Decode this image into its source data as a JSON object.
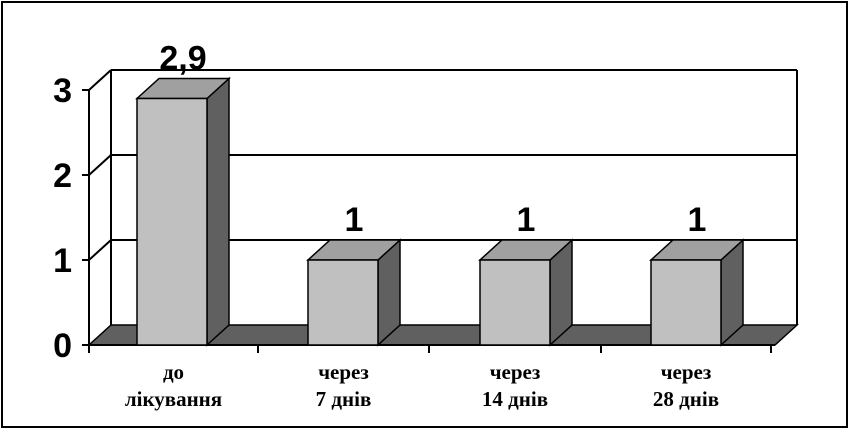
{
  "chart_data": {
    "type": "bar",
    "categories": [
      [
        "до",
        "лікування"
      ],
      [
        "через",
        "7 днів"
      ],
      [
        "через",
        "14 днів"
      ],
      [
        "через",
        "28 днів"
      ]
    ],
    "values": [
      2.9,
      1,
      1,
      1
    ],
    "value_labels": [
      "2,9",
      "1",
      "1",
      "1"
    ],
    "y_ticks": [
      "0",
      "1",
      "2",
      "3"
    ],
    "ylim": [
      0,
      3
    ],
    "grid": true,
    "three_d": true,
    "colors": {
      "bar_front": "#c0c0c0",
      "bar_side": "#606060",
      "bar_top": "#a0a0a0",
      "floor": "#606060",
      "grid": "#000000"
    }
  }
}
